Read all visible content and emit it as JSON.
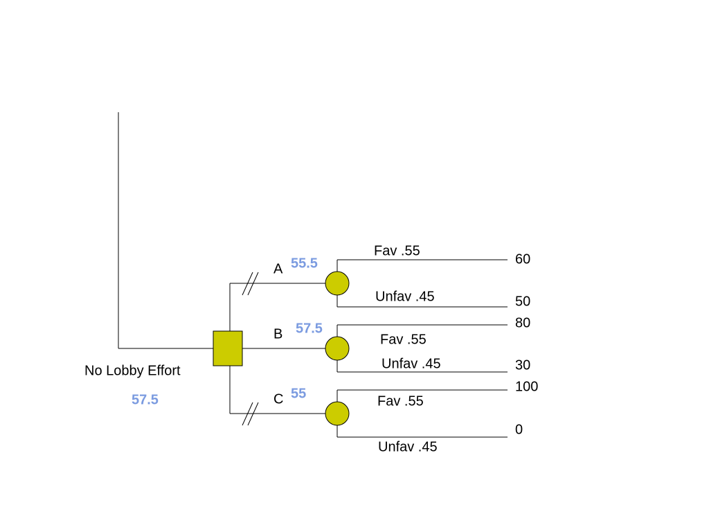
{
  "root": {
    "label": "No Lobby Effort",
    "value": 57.5
  },
  "branches": [
    {
      "label": "A",
      "value": 55.5,
      "outcomes": [
        {
          "label": "Fav .55",
          "payoff": 60
        },
        {
          "label": "Unfav .45",
          "payoff": 50
        }
      ]
    },
    {
      "label": "B",
      "value": 57.5,
      "outcomes": [
        {
          "label": "Fav .55",
          "payoff": 80
        },
        {
          "label": "Unfav .45",
          "payoff": 30
        }
      ]
    },
    {
      "label": "C",
      "value": 55,
      "outcomes": [
        {
          "label": "Fav .55",
          "payoff": 100
        },
        {
          "label": "Unfav .45",
          "payoff": 0
        }
      ]
    }
  ]
}
